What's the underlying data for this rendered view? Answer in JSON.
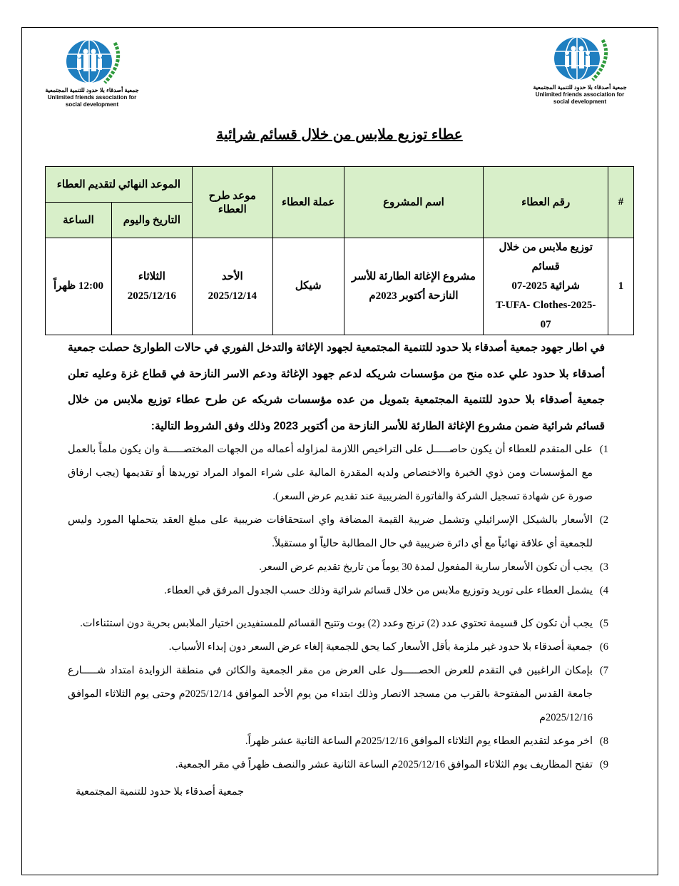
{
  "logo": {
    "arabic_name": "جمعية أصدقاء بلا حدود للتنمية المجتمعية",
    "english_line1": "Unlimited friends association for",
    "english_line2": "social development",
    "colors": {
      "globe": "#1f7fc0",
      "laurel": "#2e9a3c"
    }
  },
  "title": "عطاء توزيع ملابس من خلال قسائم شرائية",
  "table": {
    "header_color": "#d8efc9",
    "headers": {
      "index": "#",
      "tender_number": "رقم العطاء",
      "project_name": "اسم المشروع",
      "currency": "عملة العطاء",
      "issue_date": "موعد طرح العطاء",
      "deadline": "الموعد النهائي لتقديم العطاء",
      "deadline_date": "التاريخ واليوم",
      "deadline_time": "الساعة"
    },
    "rows": [
      {
        "index": "1",
        "tender_number_line1": "توزيع ملابس من خلال قسائم",
        "tender_number_line2": "شرائية 2025-07",
        "tender_number_line3": "T-UFA- Clothes-2025-",
        "tender_number_line4": "07",
        "project_name": "مشروع الإغاثة الطارئة للأسر النازحة أكتوبر 2023م",
        "currency": "شيكل",
        "issue_day": "الأحد",
        "issue_date": "2025/12/14",
        "deadline_day": "الثلاثاء",
        "deadline_date": "2025/12/16",
        "deadline_time": "12:00 ظهراً"
      }
    ]
  },
  "intro": "في اطار جهود جمعية أصدقاء بلا حدود للتنمية المجتمعية لجهود الإغاثة والتدخل الفوري في حالات الطوارئ حصلت جمعية أصدقاء بلا حدود علي عده منح من مؤسسات شريكه لدعم جهود الإغاثة ودعم الاسر النازحة في قطاع غزة وعليه تعلن جمعية أصدقاء بلا حدود للتنمية المجتمعية بتمويل من عده مؤسسات شريكه عن طرح عطاء توزيع ملابس من خلال قسائم شرائية ضمن مشروع الإغاثة الطارئة للأسر النازحة من أكتوبر 2023 وذلك وفق الشروط التالية:",
  "conditions": [
    {
      "num": "1)",
      "text": "على المتقدم للعطاء أن يكون حاصـــــل على التراخيص اللازمة لمزاوله أعماله من الجهات المختصـــــة وان يكون ملماً بالعمل مع المؤسسات ومن ذوي الخبرة والاختصاص ولديه المقدرة المالية على شراء المواد المراد توريدها أو تقديمها (يجب ارفاق صورة عن شهادة تسجيل الشركة والفاتورة الضريبية عند تقديم عرض السعر)."
    },
    {
      "num": "2)",
      "text": "الأسعار بالشيكل الإسرائيلي وتشمل ضريبة القيمة المضافة واي استحقاقات ضريبية على مبلغ العقد يتحملها المورد وليس للجمعية أي علاقة نهائياً مع أي دائرة ضريبية في حال المطالبة حالياً او مستقبلاً."
    },
    {
      "num": "3)",
      "text": "يجب أن تكون الأسعار سارية المفعول لمدة 30 يوماً من تاريخ تقديم عرض السعر."
    },
    {
      "num": "4)",
      "text": "يشمل العطاء على توريد وتوزيع ملابس من خلال قسائم شرائية وذلك حسب الجدول المرفق في العطاء."
    },
    {
      "num": "5)",
      "text": "يجب أن تكون كل قسيمة تحتوي عدد (2) ترنج وعدد (2) بوت وتتيح القسائم للمستفيدين اختيار الملابس بحرية دون استثناءات."
    },
    {
      "num": "6)",
      "text": "جمعية أصدقاء بلا حدود غير ملزمة بأقل الأسعار كما يحق للجمعية إلغاء عرض السعر دون إبداء الأسباب."
    },
    {
      "num": "7)",
      "text": "بإمكان الراغبين في التقدم للعرض الحصـــــول على العرض من مقر الجمعية والكائن في منطقة الزوايدة امتداد شـــــارع جامعة القدس المفتوحة بالقرب من مسجد الانصار وذلك ابتداء من يوم الأحد الموافق 2025/12/14م وحتى يوم الثلاثاء الموافق 2025/12/16م"
    },
    {
      "num": "8)",
      "text": "اخر موعد لتقديم العطاء يوم الثلاثاء الموافق 2025/12/16م الساعة الثانية عشر ظهراً."
    },
    {
      "num": "9)",
      "text": "تفتح المظاريف يوم الثلاثاء الموافق 2025/12/16م الساعة الثانية عشر والنصف ظهراً في مقر الجمعية."
    }
  ],
  "signature": "جمعية أصدقاء بلا حدود للتنمية المجتمعية"
}
